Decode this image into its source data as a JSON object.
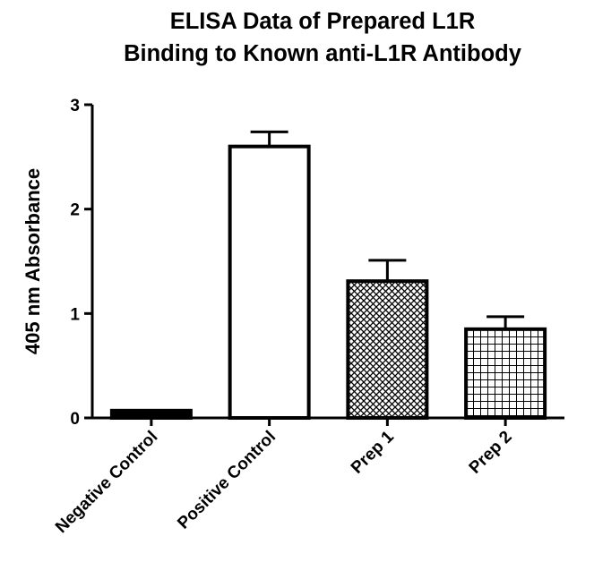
{
  "chart_data": {
    "type": "bar",
    "title_line1": "ELISA Data of Prepared L1R",
    "title_line2": "Binding to Known anti-L1R Antibody",
    "xlabel": "",
    "ylabel": "405 nm Absorbance",
    "ylim": [
      0,
      3
    ],
    "yticks": [
      "0",
      "1",
      "2",
      "3"
    ],
    "categories": [
      "Negative Control",
      "Positive Control",
      "Prep 1",
      "Prep 2"
    ],
    "values": [
      0.07,
      2.6,
      1.31,
      0.85
    ],
    "errors": [
      0.0,
      0.14,
      0.2,
      0.12
    ],
    "fills": [
      "solid-black",
      "white",
      "diagonal-crosshatch",
      "grid"
    ],
    "grid": false,
    "legend": "none"
  }
}
